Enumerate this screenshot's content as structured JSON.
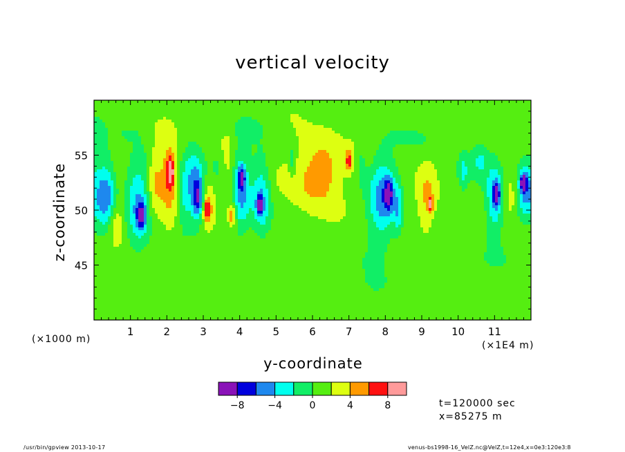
{
  "chart_data": {
    "type": "heatmap",
    "title": "vertical velocity",
    "xlabel": "y-coordinate",
    "ylabel": "z-coordinate",
    "x_unit_left": "(×1000 m)",
    "x_unit_right": "(×1E4 m)",
    "xlim": [
      0,
      12
    ],
    "ylim": [
      40,
      60
    ],
    "x_ticks": [
      "1",
      "2",
      "3",
      "4",
      "5",
      "6",
      "7",
      "8",
      "9",
      "10",
      "11"
    ],
    "y_ticks": [
      "45",
      "50",
      "55"
    ],
    "colorbar": {
      "levels": [
        -10,
        -8,
        -6,
        -4,
        -2,
        0,
        2,
        4,
        6,
        8,
        10
      ],
      "colors": [
        "#8a12b8",
        "#0000dd",
        "#1e88ee",
        "#00ffee",
        "#11ee66",
        "#55ee11",
        "#ddff11",
        "#ff9a00",
        "#ff1111",
        "#ff9a9a"
      ],
      "tick_labels": [
        "−8",
        "−4",
        "0",
        "4",
        "8"
      ],
      "tick_values": [
        -8,
        -4,
        0,
        4,
        8
      ]
    },
    "background_value": 1,
    "features": [
      {
        "y": 0.0,
        "z": 51.5,
        "value": -3,
        "wy": 0.4,
        "wz": 4.2
      },
      {
        "y": 0.35,
        "z": 51.0,
        "value": -5.5,
        "wy": 0.25,
        "wz": 3.0
      },
      {
        "y": 0.6,
        "z": 49.0,
        "value": 3,
        "wy": 0.25,
        "wz": 2.0
      },
      {
        "y": 1.2,
        "z": 51.0,
        "value": -5,
        "wy": 0.35,
        "wz": 3.8
      },
      {
        "y": 1.3,
        "z": 49.5,
        "value": -7,
        "wy": 0.12,
        "wz": 1.2
      },
      {
        "y": 1.65,
        "z": 52.5,
        "value": 3,
        "wy": 0.2,
        "wz": 3.5
      },
      {
        "y": 2.05,
        "z": 53.0,
        "value": 4,
        "wy": 0.32,
        "wz": 4.5
      },
      {
        "y": 2.1,
        "z": 53.5,
        "value": 6,
        "wy": 0.12,
        "wz": 1.5
      },
      {
        "y": 2.45,
        "z": 51.0,
        "value": -3,
        "wy": 0.2,
        "wz": 3.0
      },
      {
        "y": 2.75,
        "z": 52.5,
        "value": -5,
        "wy": 0.3,
        "wz": 3.5
      },
      {
        "y": 2.85,
        "z": 51.0,
        "value": -6.5,
        "wy": 0.15,
        "wz": 1.8
      },
      {
        "y": 3.15,
        "z": 51.5,
        "value": 3,
        "wy": 0.22,
        "wz": 3.5
      },
      {
        "y": 3.1,
        "z": 50.0,
        "value": 6,
        "wy": 0.1,
        "wz": 1.0
      },
      {
        "y": 3.35,
        "z": 54.0,
        "value": -2.5,
        "wy": 0.45,
        "wz": 1.8
      },
      {
        "y": 3.65,
        "z": 53.5,
        "value": 3,
        "wy": 0.2,
        "wz": 3.5
      },
      {
        "y": 3.8,
        "z": 49.5,
        "value": 5,
        "wy": 0.1,
        "wz": 1.0
      },
      {
        "y": 4.05,
        "z": 51.5,
        "value": -5,
        "wy": 0.25,
        "wz": 3.5
      },
      {
        "y": 4.05,
        "z": 53.0,
        "value": -6.5,
        "wy": 0.1,
        "wz": 1.0
      },
      {
        "y": 4.6,
        "z": 51.0,
        "value": -5.5,
        "wy": 0.25,
        "wz": 3.3
      },
      {
        "y": 4.55,
        "z": 50.5,
        "value": -7.5,
        "wy": 0.08,
        "wz": 0.8
      },
      {
        "y": 5.45,
        "z": 54.5,
        "value": -3,
        "wy": 0.1,
        "wz": 1.5
      },
      {
        "y": 5.9,
        "z": 53.0,
        "value": 3,
        "wy": 0.6,
        "wz": 3.5
      },
      {
        "y": 6.35,
        "z": 54.0,
        "value": 3,
        "wy": 0.45,
        "wz": 3.0
      },
      {
        "y": 7.0,
        "z": 54.5,
        "value": 5.5,
        "wy": 0.1,
        "wz": 1.0
      },
      {
        "y": 7.35,
        "z": 54.0,
        "value": -2.5,
        "wy": 0.12,
        "wz": 1.5
      },
      {
        "y": 7.9,
        "z": 51.0,
        "value": -5.5,
        "wy": 0.35,
        "wz": 3.8
      },
      {
        "y": 8.1,
        "z": 51.5,
        "value": -7,
        "wy": 0.12,
        "wz": 1.5
      },
      {
        "y": 8.35,
        "z": 50.0,
        "value": -4,
        "wy": 0.12,
        "wz": 2.5
      },
      {
        "y": 9.15,
        "z": 51.0,
        "value": 3,
        "wy": 0.25,
        "wz": 3.0
      },
      {
        "y": 9.25,
        "z": 50.5,
        "value": 5.5,
        "wy": 0.06,
        "wz": 0.7
      },
      {
        "y": 10.15,
        "z": 53.5,
        "value": -3,
        "wy": 0.12,
        "wz": 1.5
      },
      {
        "y": 10.6,
        "z": 54.5,
        "value": -3,
        "wy": 0.2,
        "wz": 1.5
      },
      {
        "y": 11.0,
        "z": 51.0,
        "value": -5.5,
        "wy": 0.25,
        "wz": 3.5
      },
      {
        "y": 11.05,
        "z": 51.5,
        "value": -8.5,
        "wy": 0.08,
        "wz": 1.0
      },
      {
        "y": 11.5,
        "z": 51.5,
        "value": 3,
        "wy": 0.2,
        "wz": 2.0
      },
      {
        "y": 11.85,
        "z": 52.0,
        "value": -6,
        "wy": 0.3,
        "wz": 2.5
      },
      {
        "y": 11.8,
        "z": 52.5,
        "value": -9,
        "wy": 0.08,
        "wz": 0.7
      },
      {
        "y": 1.0,
        "z": 57.0,
        "value": -1.2,
        "wy": 0.35,
        "wz": 0.8
      },
      {
        "y": 4.2,
        "z": 57.5,
        "value": -1.0,
        "wy": 0.4,
        "wz": 0.8
      },
      {
        "y": 9.0,
        "z": 56.5,
        "value": -1.2,
        "wy": 0.45,
        "wz": 0.8
      },
      {
        "y": 2.5,
        "z": 44.0,
        "value": -1.0,
        "wy": 0.4,
        "wz": 1.2
      },
      {
        "y": 7.8,
        "z": 43.0,
        "value": -1.2,
        "wy": 0.45,
        "wz": 1.5
      },
      {
        "y": 10.8,
        "z": 45.5,
        "value": -1.0,
        "wy": 0.4,
        "wz": 1.2
      }
    ]
  },
  "info": {
    "time": "t=120000 sec",
    "x_position": "x=85275 m"
  },
  "footer": {
    "left": "/usr/bin/gpview   2013-10-17",
    "right": "venus-bs1998-16_VelZ.nc@VelZ,t=12e4,x=0e3:120e3:8"
  }
}
